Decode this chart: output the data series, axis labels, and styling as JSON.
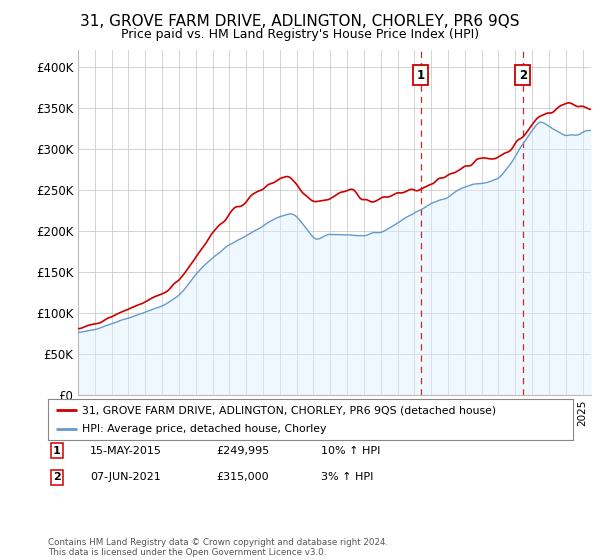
{
  "title": "31, GROVE FARM DRIVE, ADLINGTON, CHORLEY, PR6 9QS",
  "subtitle": "Price paid vs. HM Land Registry's House Price Index (HPI)",
  "title_fontsize": 11,
  "subtitle_fontsize": 9,
  "ylabel_ticks": [
    "£0",
    "£50K",
    "£100K",
    "£150K",
    "£200K",
    "£250K",
    "£300K",
    "£350K",
    "£400K"
  ],
  "ytick_values": [
    0,
    50000,
    100000,
    150000,
    200000,
    250000,
    300000,
    350000,
    400000
  ],
  "ylim": [
    0,
    420000
  ],
  "xlim_start": 1995.0,
  "xlim_end": 2025.5,
  "sale1_date": 2015.37,
  "sale1_label": "1",
  "sale1_price": 249995,
  "sale1_pct": "10% ↑ HPI",
  "sale1_date_str": "15-MAY-2015",
  "sale2_date": 2021.44,
  "sale2_label": "2",
  "sale2_price": 315000,
  "sale2_pct": "3% ↑ HPI",
  "sale2_date_str": "07-JUN-2021",
  "line1_color": "#cc0000",
  "line2_color": "#6699cc",
  "line2_fill": "#ddeeff",
  "grid_color": "#cccccc",
  "legend_line1": "31, GROVE FARM DRIVE, ADLINGTON, CHORLEY, PR6 9QS (detached house)",
  "legend_line2": "HPI: Average price, detached house, Chorley",
  "footer": "Contains HM Land Registry data © Crown copyright and database right 2024.\nThis data is licensed under the Open Government Licence v3.0.",
  "background_color": "#ffffff"
}
